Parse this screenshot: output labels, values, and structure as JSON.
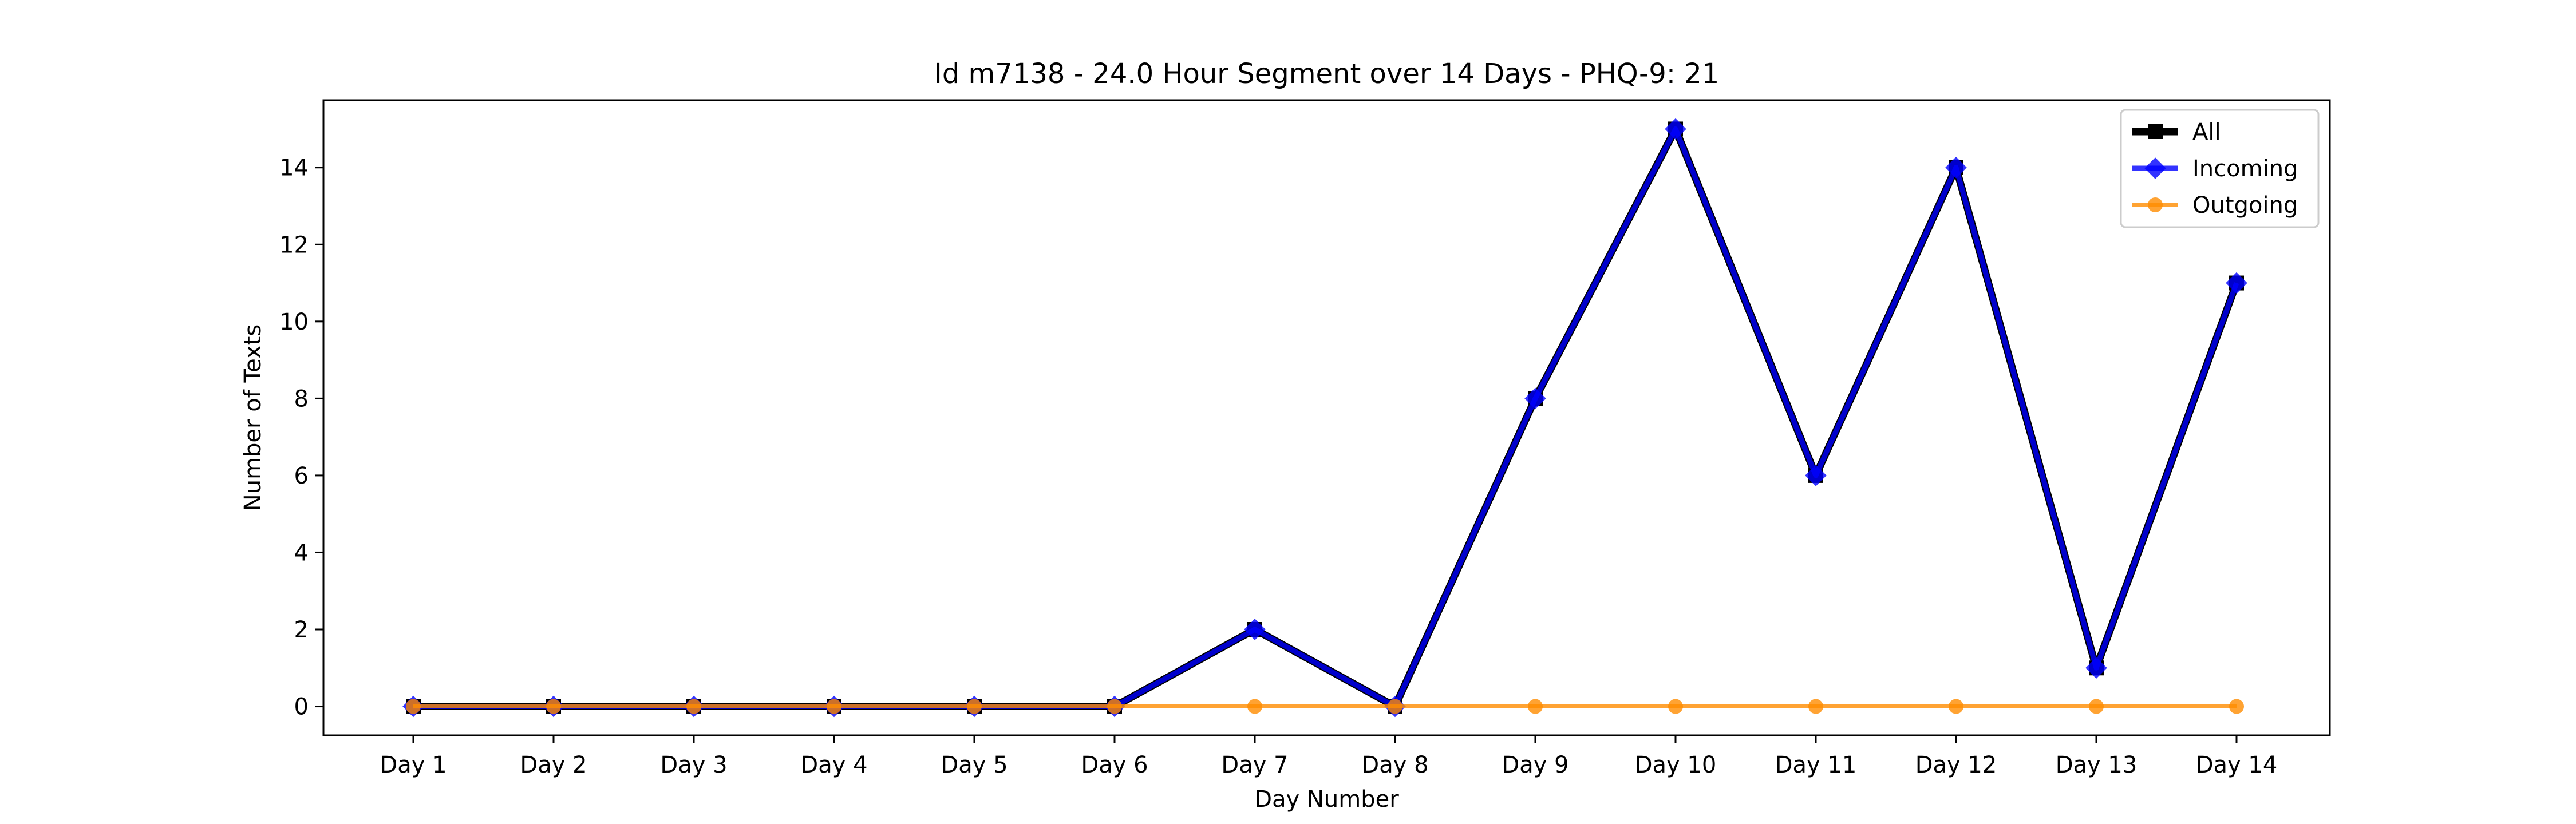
{
  "chart_data": {
    "type": "line",
    "title": "Id m7138 - 24.0 Hour Segment over 14 Days - PHQ-9: 21",
    "xlabel": "Day Number",
    "ylabel": "Number of Texts",
    "categories": [
      "Day 1",
      "Day 2",
      "Day 3",
      "Day 4",
      "Day 5",
      "Day 6",
      "Day 7",
      "Day 8",
      "Day 9",
      "Day 10",
      "Day 11",
      "Day 12",
      "Day 13",
      "Day 14"
    ],
    "yticks": [
      0,
      2,
      4,
      6,
      8,
      10,
      12,
      14
    ],
    "ylim": [
      -0.75,
      15.75
    ],
    "grid": false,
    "legend_position": "top-right",
    "series": [
      {
        "name": "All",
        "values": [
          0,
          0,
          0,
          0,
          0,
          0,
          2,
          0,
          8,
          15,
          6,
          14,
          1,
          11
        ],
        "color": "#000000",
        "marker": "square"
      },
      {
        "name": "Incoming",
        "values": [
          0,
          0,
          0,
          0,
          0,
          0,
          2,
          0,
          8,
          15,
          6,
          14,
          1,
          11
        ],
        "color": "#0000ff",
        "marker": "diamond"
      },
      {
        "name": "Outgoing",
        "values": [
          0,
          0,
          0,
          0,
          0,
          0,
          0,
          0,
          0,
          0,
          0,
          0,
          0,
          0
        ],
        "color": "#ff8c00",
        "marker": "circle"
      }
    ]
  }
}
